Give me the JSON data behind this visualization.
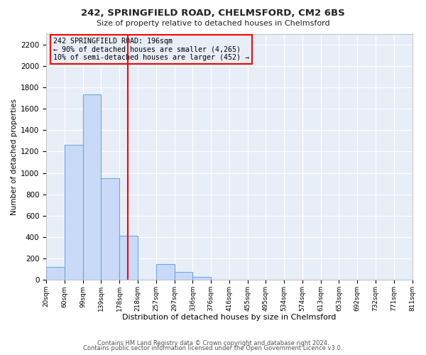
{
  "title1": "242, SPRINGFIELD ROAD, CHELMSFORD, CM2 6BS",
  "title2": "Size of property relative to detached houses in Chelmsford",
  "xlabel": "Distribution of detached houses by size in Chelmsford",
  "ylabel": "Number of detached properties",
  "footer1": "Contains HM Land Registry data © Crown copyright and database right 2024.",
  "footer2": "Contains public sector information licensed under the Open Government Licence v3.0.",
  "bin_labels": [
    "20sqm",
    "60sqm",
    "99sqm",
    "139sqm",
    "178sqm",
    "218sqm",
    "257sqm",
    "297sqm",
    "336sqm",
    "376sqm",
    "416sqm",
    "455sqm",
    "495sqm",
    "534sqm",
    "574sqm",
    "613sqm",
    "653sqm",
    "692sqm",
    "732sqm",
    "771sqm",
    "811sqm"
  ],
  "counts": [
    120,
    1265,
    1735,
    950,
    415,
    0,
    148,
    75,
    30,
    0,
    0,
    0,
    0,
    0,
    0,
    0,
    0,
    0,
    0,
    0
  ],
  "bar_color": "#c9daf8",
  "bar_edge_color": "#6fa8dc",
  "vline_color": "red",
  "vline_bin_index": 4.45,
  "annotation_title": "242 SPRINGFIELD ROAD: 196sqm",
  "annotation_line1": "← 90% of detached houses are smaller (4,265)",
  "annotation_line2": "10% of semi-detached houses are larger (452) →",
  "ylim": [
    0,
    2300
  ],
  "yticks": [
    0,
    200,
    400,
    600,
    800,
    1000,
    1200,
    1400,
    1600,
    1800,
    2000,
    2200
  ],
  "bg_color": "#e8eef8",
  "grid_color": "#ffffff",
  "fig_bg": "#ffffff"
}
